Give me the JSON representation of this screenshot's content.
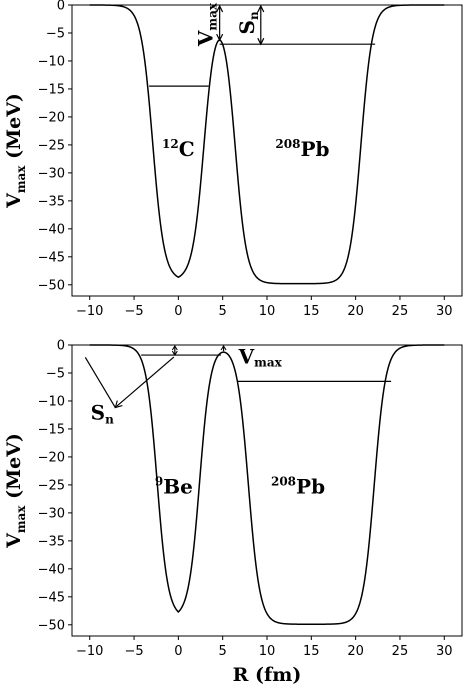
{
  "chart_data": [
    {
      "type": "line",
      "panel": "top",
      "ylabel_main": "V",
      "ylabel_sub": "max",
      "ylabel_tail": " (MeV)",
      "xlim": [
        -12,
        32
      ],
      "ylim": [
        -52,
        0
      ],
      "xticks": [
        -10,
        -5,
        0,
        5,
        10,
        15,
        20,
        25,
        30
      ],
      "yticks": [
        0,
        -5,
        -10,
        -15,
        -20,
        -25,
        -30,
        -35,
        -40,
        -45,
        -50
      ],
      "nuclei": [
        {
          "super": "12",
          "name": "C",
          "center": 0,
          "depth": 49.2,
          "radius": 2.9,
          "diffuseness": 0.65
        },
        {
          "super": "208",
          "name": "Pb",
          "center": 13.5,
          "depth": 49.8,
          "radius": 7.1,
          "diffuseness": 0.65
        }
      ],
      "annotations": {
        "sn": {
          "main": "S",
          "sub": "n"
        },
        "vmax": {
          "main": "V",
          "sub": "max"
        },
        "vmax_value": -7.0,
        "level_left": -14.5,
        "level_right": -7.0
      }
    },
    {
      "type": "line",
      "panel": "bottom",
      "xlabel": "R (fm)",
      "ylabel_main": "V",
      "ylabel_sub": "max",
      "ylabel_tail": " (MeV)",
      "xlim": [
        -12,
        32
      ],
      "ylim": [
        -52,
        0
      ],
      "xticks": [
        -10,
        -5,
        0,
        5,
        10,
        15,
        20,
        25,
        30
      ],
      "yticks": [
        0,
        -5,
        -10,
        -15,
        -20,
        -25,
        -30,
        -35,
        -40,
        -45,
        -50
      ],
      "nuclei": [
        {
          "super": "9",
          "name": "Be",
          "center": 0,
          "depth": 48.7,
          "radius": 2.4,
          "diffuseness": 0.62
        },
        {
          "super": "208",
          "name": "Pb",
          "center": 15.0,
          "depth": 49.9,
          "radius": 7.1,
          "diffuseness": 0.65
        }
      ],
      "annotations": {
        "sn": {
          "main": "S",
          "sub": "n"
        },
        "vmax": {
          "main": "V",
          "sub": "max"
        },
        "vmax_value": -1.3,
        "level_left": -1.8,
        "level_right": -6.5
      }
    }
  ]
}
